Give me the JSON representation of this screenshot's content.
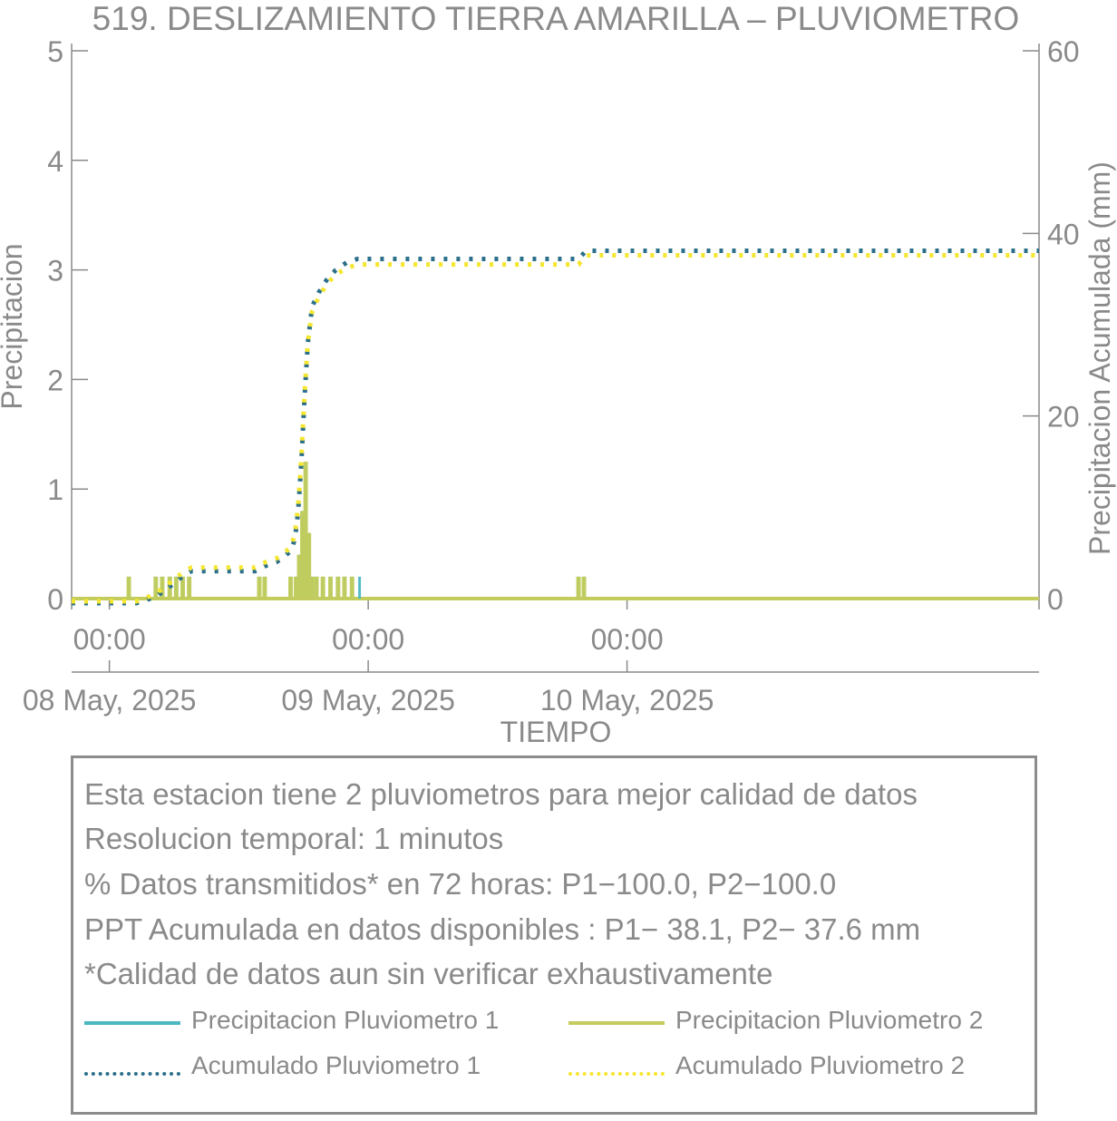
{
  "chart_data": {
    "type": "bar",
    "title": "519. DESLIZAMIENTO TIERRA AMARILLA – PLUVIOMETRO",
    "xlabel": "TIEMPO",
    "ylabel_left": "Precipitacion",
    "ylabel_right": "Precipitacion Acumulada (mm)",
    "ylim_left": [
      0,
      5
    ],
    "ylim_right": [
      0,
      60
    ],
    "yticks_left": [
      "0",
      "1",
      "2",
      "3",
      "4",
      "5"
    ],
    "yticks_right": [
      "0",
      "20",
      "40",
      "60"
    ],
    "xlim_hours": [
      -3.5,
      86.2
    ],
    "xticks": [
      {
        "hour": 0,
        "time": "00:00",
        "date": "08 May, 2025"
      },
      {
        "hour": 24,
        "time": "00:00",
        "date": "09 May, 2025"
      },
      {
        "hour": 48,
        "time": "00:00",
        "date": "10 May, 2025"
      }
    ],
    "colors": {
      "p1": "#4bb8c4",
      "p2": "#c3cc5c",
      "a1": "#2b6f8a",
      "a2": "#f5e62f",
      "axis": "#8a8a8a"
    },
    "series": [
      {
        "name": "Precipitacion Pluviometro 1",
        "style": "bar",
        "axis": "left",
        "x": [
          1.8,
          4.3,
          4.9,
          5.6,
          6.2,
          6.8,
          7.4,
          13.9,
          14.4,
          16.8,
          17.3,
          17.6,
          17.9,
          18.2,
          18.5,
          18.8,
          19.2,
          19.8,
          20.5,
          21.2,
          21.8,
          22.5,
          23.2,
          43.5,
          44.0
        ],
        "values": [
          0.2,
          0.2,
          0.2,
          0.2,
          0.2,
          0.2,
          0.2,
          0.2,
          0.2,
          0.2,
          0.2,
          0.4,
          0.8,
          1.2,
          0.6,
          0.2,
          0.2,
          0.2,
          0.2,
          0.2,
          0.2,
          0.2,
          0.2,
          0.2,
          0.2
        ]
      },
      {
        "name": "Precipitacion Pluviometro 2",
        "style": "bar",
        "axis": "left",
        "x": [
          1.8,
          4.3,
          4.9,
          5.6,
          6.2,
          6.8,
          7.4,
          13.9,
          14.4,
          16.8,
          17.3,
          17.6,
          17.9,
          18.2,
          18.5,
          18.8,
          19.2,
          19.8,
          20.5,
          21.2,
          21.8,
          22.5,
          43.5,
          44.0
        ],
        "values": [
          0.2,
          0.2,
          0.2,
          0.2,
          0.2,
          0.2,
          0.2,
          0.2,
          0.2,
          0.2,
          0.2,
          0.4,
          0.8,
          1.25,
          0.6,
          0.2,
          0.2,
          0.2,
          0.2,
          0.2,
          0.2,
          0.2,
          0.2,
          0.2
        ]
      },
      {
        "name": "Acumulado Pluviometro 1",
        "style": "dotted",
        "axis": "right",
        "x": [
          -3.5,
          2.5,
          4.3,
          5.0,
          5.7,
          6.3,
          7.0,
          7.6,
          13.5,
          14.5,
          15.5,
          16.2,
          16.8,
          17.2,
          17.5,
          17.8,
          18.1,
          18.4,
          18.8,
          19.4,
          20.2,
          21.0,
          22.0,
          23.0,
          43.5,
          44.2,
          86.2
        ],
        "values": [
          -0.5,
          -0.5,
          0.2,
          0.8,
          1.4,
          2.0,
          2.6,
          3.0,
          3.0,
          3.6,
          4.0,
          4.6,
          5.2,
          6.5,
          9.5,
          15.0,
          22.0,
          28.0,
          32.0,
          33.5,
          35.0,
          36.0,
          36.8,
          37.2,
          37.2,
          38.1,
          38.1
        ]
      },
      {
        "name": "Acumulado Pluviometro 2",
        "style": "dotted",
        "axis": "right",
        "x": [
          -3.5,
          2.5,
          4.3,
          5.0,
          5.7,
          6.3,
          7.0,
          7.6,
          13.5,
          14.5,
          15.5,
          16.2,
          16.8,
          17.2,
          17.5,
          17.8,
          18.1,
          18.4,
          18.8,
          19.4,
          20.2,
          21.0,
          22.0,
          23.0,
          43.5,
          44.2,
          86.2
        ],
        "values": [
          -0.3,
          -0.3,
          0.5,
          1.2,
          1.8,
          2.4,
          3.0,
          3.4,
          3.4,
          4.0,
          4.4,
          5.0,
          5.6,
          7.0,
          10.0,
          15.5,
          22.5,
          28.0,
          31.5,
          33.0,
          34.5,
          35.5,
          36.2,
          36.6,
          36.6,
          37.6,
          37.6
        ]
      }
    ]
  },
  "info_box": {
    "lines": [
      "Esta estacion tiene 2 pluviometros para mejor calidad de datos",
      "Resolucion temporal: 1 minutos",
      "% Datos transmitidos* en 72 horas: P1−100.0, P2−100.0",
      "PPT Acumulada en datos disponibles : P1− 38.1, P2− 37.6 mm",
      "*Calidad de datos aun sin verificar exhaustivamente"
    ],
    "legend": [
      {
        "label": "Precipitacion Pluviometro 1",
        "color": "#4bb8c4",
        "style": "solid"
      },
      {
        "label": "Precipitacion Pluviometro 2",
        "color": "#c3cc5c",
        "style": "solid"
      },
      {
        "label": "Acumulado Pluviometro 1",
        "color": "#2b6f8a",
        "style": "dotted"
      },
      {
        "label": "Acumulado Pluviometro 2",
        "color": "#f5e62f",
        "style": "dotted"
      }
    ]
  }
}
